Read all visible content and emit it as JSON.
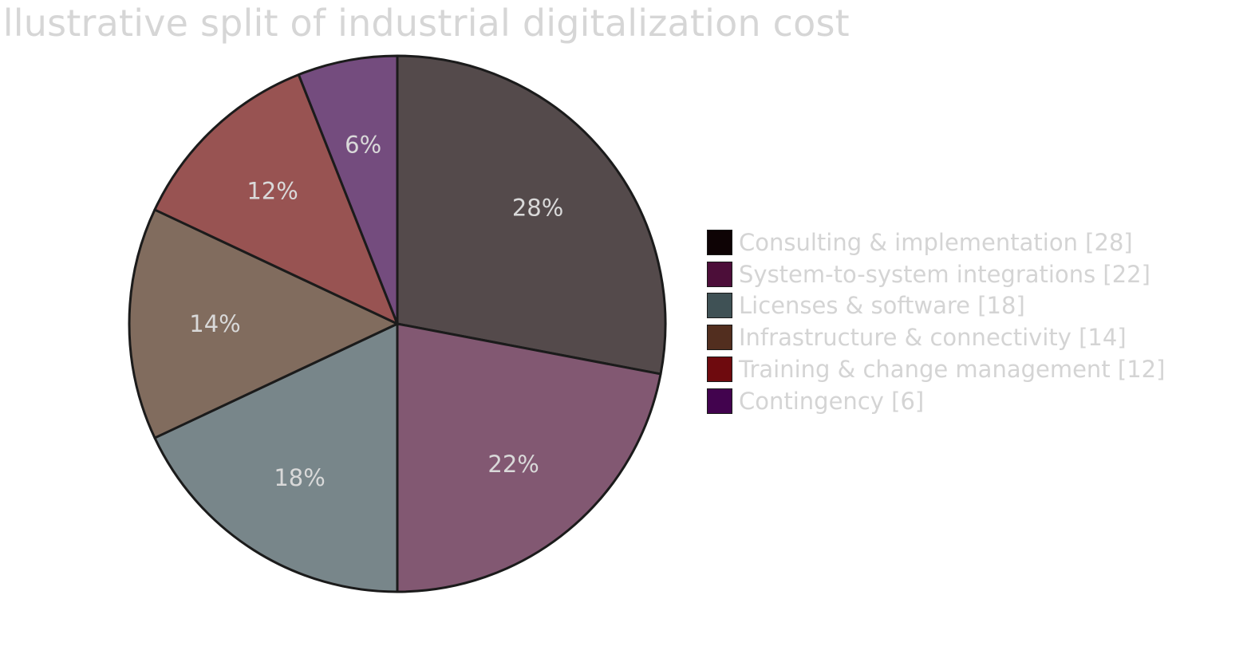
{
  "chart_data": {
    "type": "pie",
    "title": "Illustrative split of industrial digitalization cost",
    "categories": [
      "Consulting & implementation",
      "System-to-system integrations",
      "Licenses & software",
      "Infrastructure & connectivity",
      "Training & change management",
      "Contingency"
    ],
    "values": [
      28,
      22,
      18,
      14,
      12,
      6
    ],
    "slice_labels": [
      "28%",
      "22%",
      "18%",
      "14%",
      "12%",
      "6%"
    ],
    "legend_labels": [
      "Consulting & implementation [28]",
      "System-to-system integrations [22]",
      "Licenses & software [18]",
      "Infrastructure & connectivity [14]",
      "Training & change management [12]",
      "Contingency [6]"
    ],
    "slice_colors": [
      "#544a4b",
      "#825872",
      "#78868a",
      "#816c5e",
      "#985352",
      "#744c7e"
    ],
    "legend_colors": [
      "#0e0305",
      "#4c0e39",
      "#3f5155",
      "#522e1f",
      "#6e0a0e",
      "#42034e"
    ],
    "start_angle": "12 o'clock",
    "direction": "clockwise",
    "legend_position": "right"
  }
}
